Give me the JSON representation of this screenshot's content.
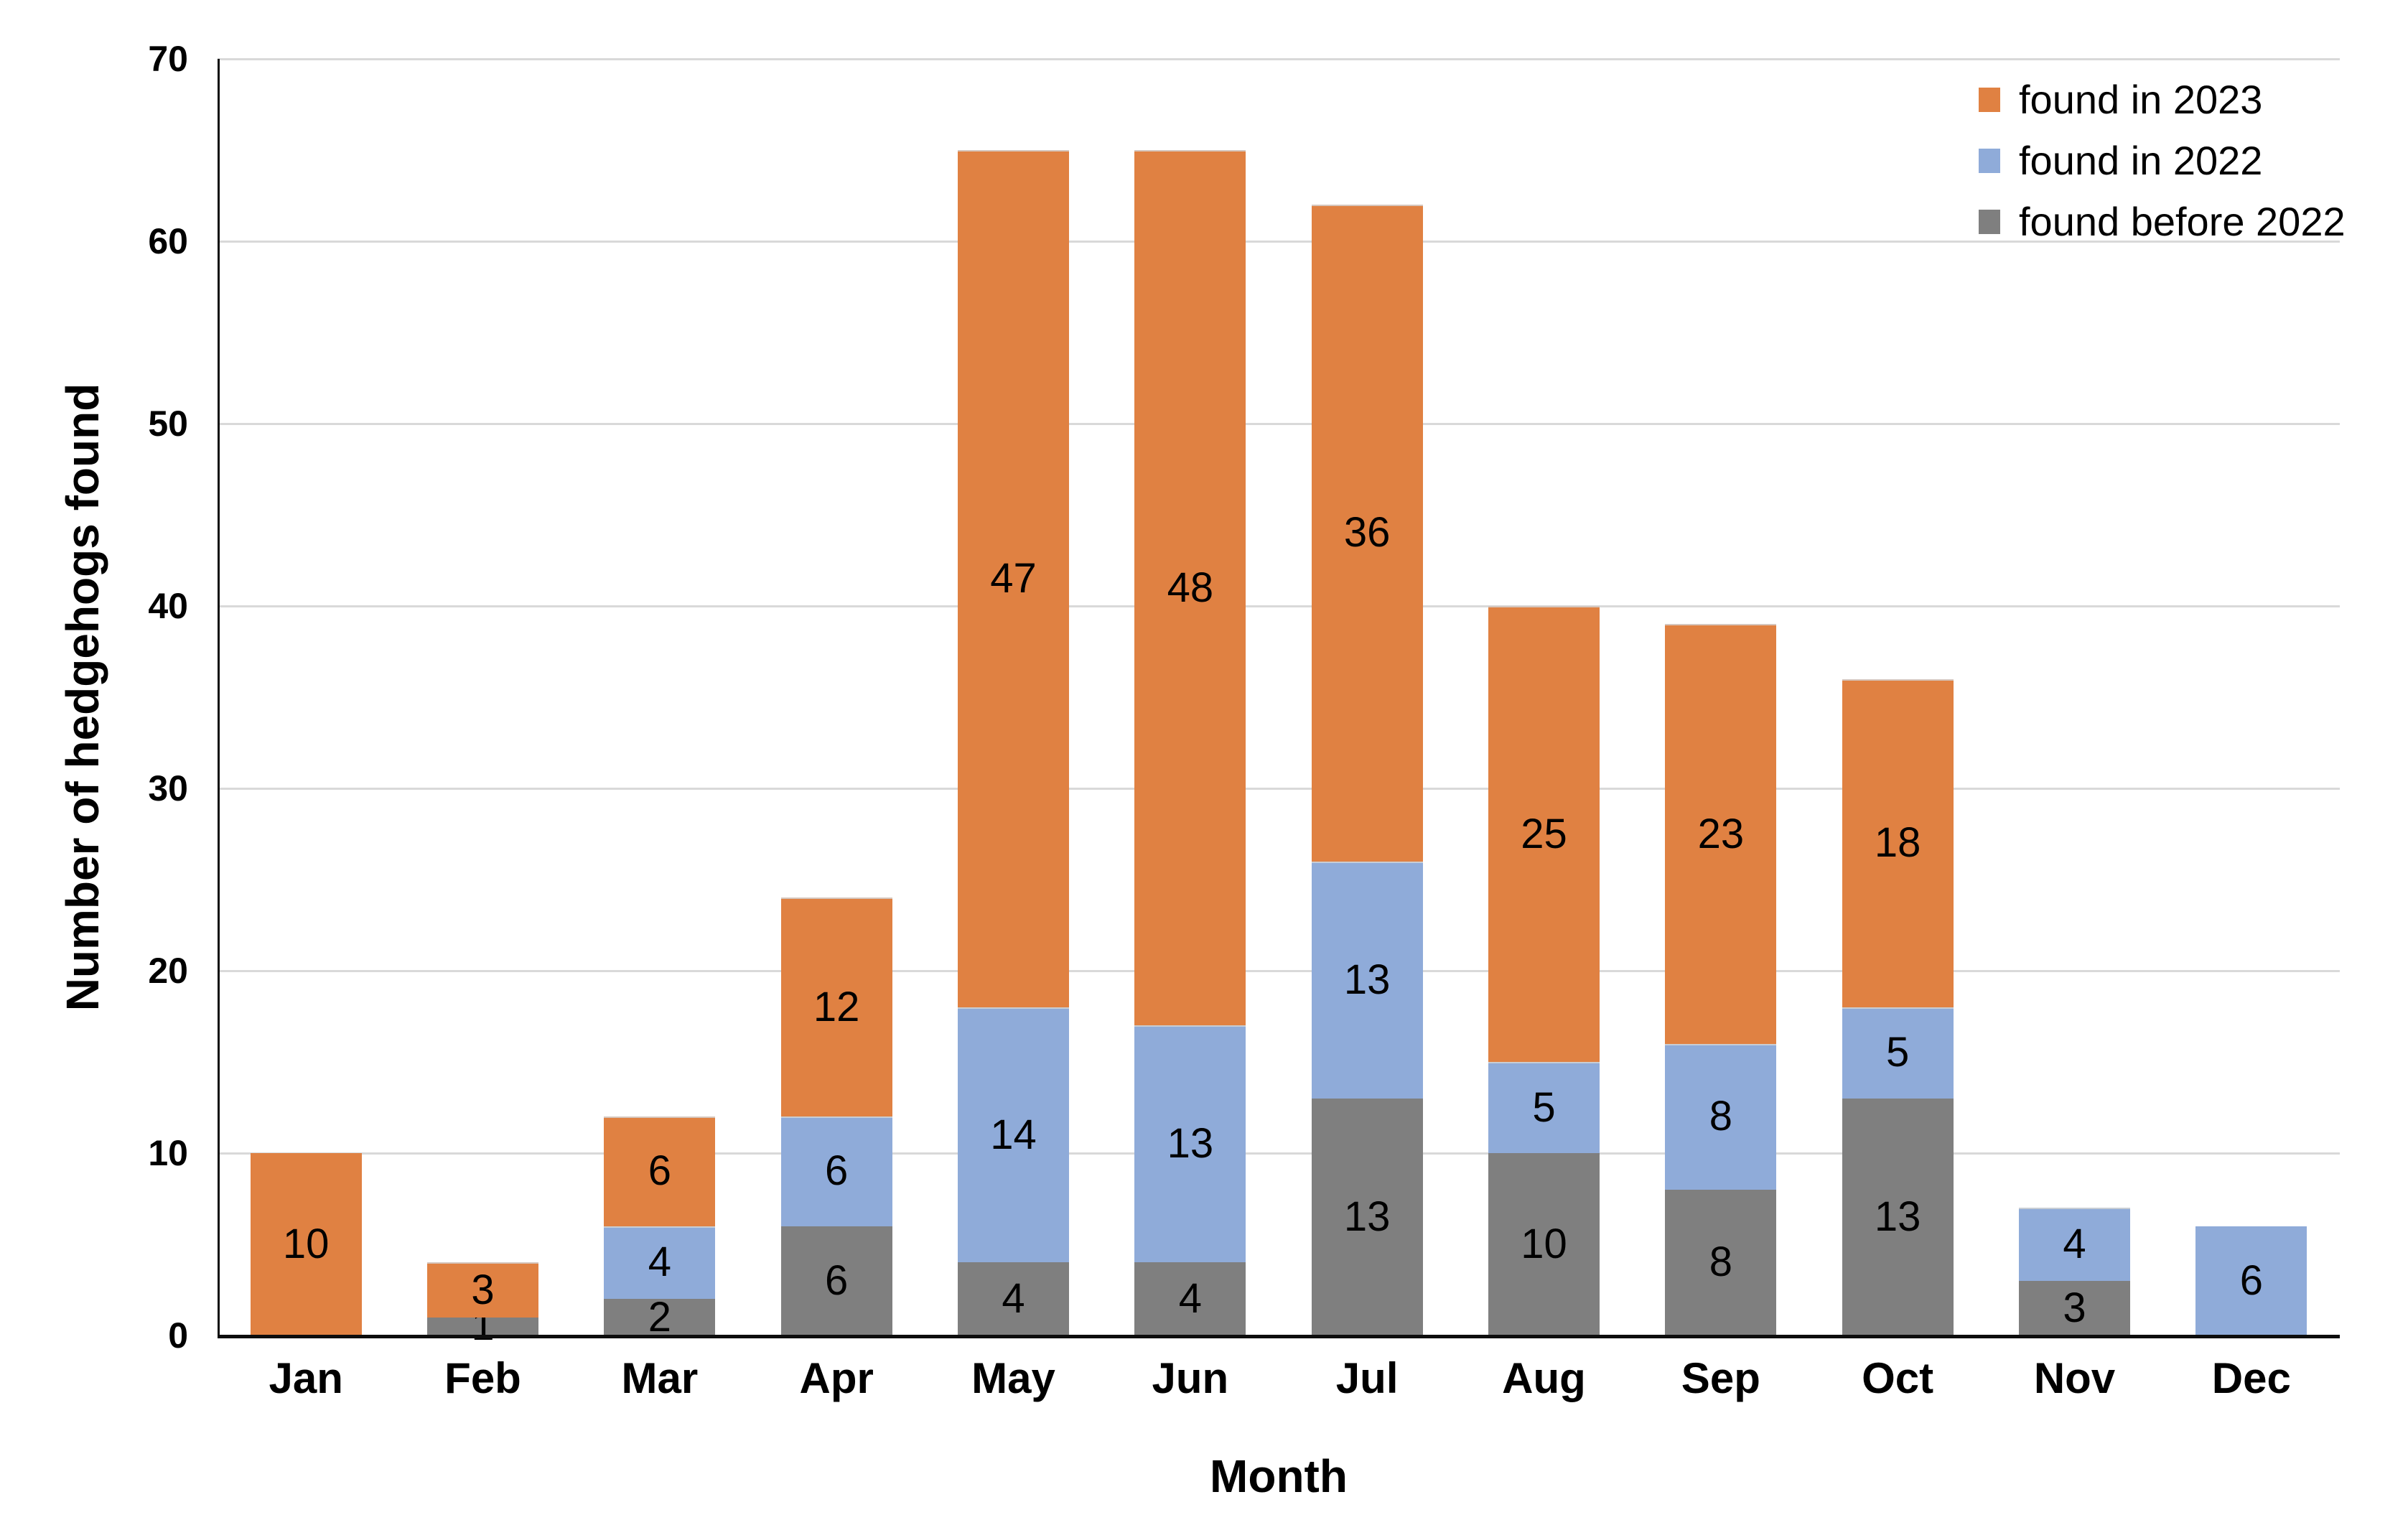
{
  "chart_data": {
    "type": "bar",
    "stacked": true,
    "categories": [
      "Jan",
      "Feb",
      "Mar",
      "Apr",
      "May",
      "Jun",
      "Jul",
      "Aug",
      "Sep",
      "Oct",
      "Nov",
      "Dec"
    ],
    "series": [
      {
        "name": "found before 2022",
        "color": "#7f7f7f",
        "values": [
          0,
          1,
          2,
          6,
          4,
          4,
          13,
          10,
          8,
          13,
          3,
          0
        ]
      },
      {
        "name": "found in 2022",
        "color": "#8fabd9",
        "values": [
          0,
          0,
          4,
          6,
          14,
          13,
          13,
          5,
          8,
          5,
          4,
          6
        ]
      },
      {
        "name": "found in 2023",
        "color": "#e08142",
        "values": [
          10,
          3,
          6,
          12,
          47,
          48,
          36,
          25,
          23,
          18,
          0,
          0
        ]
      }
    ],
    "totals": [
      10,
      4,
      12,
      24,
      65,
      65,
      62,
      40,
      39,
      36,
      7,
      6
    ],
    "xlabel": "Month",
    "ylabel": "Number of hedgehogs found",
    "ylim": [
      0,
      70
    ],
    "ytick_step": 10,
    "ytick_labels": [
      "0",
      "10",
      "20",
      "30",
      "40",
      "50",
      "60",
      "70"
    ],
    "grid": true,
    "data_labels": "shown inside segments, non-zero only",
    "legend_position": "top-right"
  },
  "legend": {
    "items": [
      {
        "label": "found in 2023",
        "color": "#e08142",
        "swatch": "orange-square-icon"
      },
      {
        "label": "found in 2022",
        "color": "#8fabd9",
        "swatch": "blue-square-icon"
      },
      {
        "label": "found before 2022",
        "color": "#7f7f7f",
        "swatch": "gray-square-icon"
      }
    ]
  },
  "colors": {
    "background": "#ffffff",
    "gridline": "#d9d9d9",
    "axis_line": "#0d0d0d",
    "text": "#000000"
  }
}
